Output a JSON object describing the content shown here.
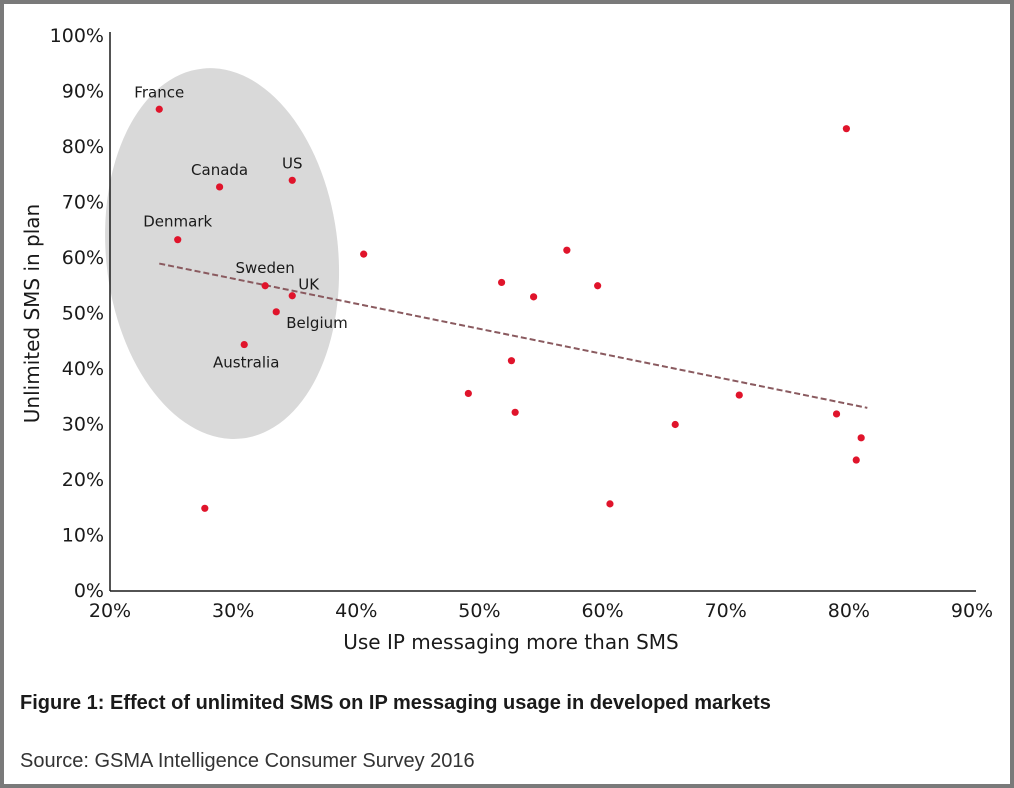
{
  "caption": "Figure 1: Effect of unlimited SMS on IP messaging usage in developed markets",
  "source": "Source: GSMA Intelligence Consumer Survey 2016",
  "colors": {
    "point": "#e0142b",
    "ellipse": "#d9d9d9",
    "trendline": "#8a5a5f",
    "axis": "#1a1a1a",
    "frame": "#7a7a7a"
  },
  "chart_data": {
    "type": "scatter",
    "title": "",
    "xlabel": "Use IP messaging more than SMS",
    "ylabel": "Unlimited SMS in plan",
    "xlim": [
      20,
      90
    ],
    "ylim": [
      0,
      100
    ],
    "x_ticks": [
      "20%",
      "30%",
      "40%",
      "50%",
      "60%",
      "70%",
      "80%",
      "90%"
    ],
    "y_ticks": [
      "0%",
      "10%",
      "20%",
      "30%",
      "40%",
      "50%",
      "60%",
      "70%",
      "80%",
      "90%",
      "100%"
    ],
    "grid": false,
    "legend": null,
    "highlight": {
      "shape": "ellipse",
      "covers": [
        "France",
        "Canada",
        "US",
        "Denmark",
        "Sweden",
        "UK",
        "Belgium",
        "Australia"
      ]
    },
    "trendline": {
      "style": "dashed",
      "x": [
        24,
        81.5
      ],
      "y": [
        59,
        33
      ]
    },
    "points": [
      {
        "label": "France",
        "x": 24.0,
        "y": 86.8
      },
      {
        "label": "Canada",
        "x": 28.9,
        "y": 72.8
      },
      {
        "label": "US",
        "x": 34.8,
        "y": 74.0
      },
      {
        "label": "Denmark",
        "x": 25.5,
        "y": 63.3
      },
      {
        "label": "Sweden",
        "x": 32.6,
        "y": 55.0
      },
      {
        "label": "UK",
        "x": 34.8,
        "y": 53.2
      },
      {
        "label": "Belgium",
        "x": 33.5,
        "y": 50.3
      },
      {
        "label": "Australia",
        "x": 30.9,
        "y": 44.4
      },
      {
        "label": "",
        "x": 27.7,
        "y": 14.9
      },
      {
        "label": "",
        "x": 40.6,
        "y": 60.7
      },
      {
        "label": "",
        "x": 49.1,
        "y": 35.6
      },
      {
        "label": "",
        "x": 51.8,
        "y": 55.6
      },
      {
        "label": "",
        "x": 52.6,
        "y": 41.5
      },
      {
        "label": "",
        "x": 52.9,
        "y": 32.2
      },
      {
        "label": "",
        "x": 54.4,
        "y": 53.0
      },
      {
        "label": "",
        "x": 57.1,
        "y": 61.4
      },
      {
        "label": "",
        "x": 59.6,
        "y": 55.0
      },
      {
        "label": "",
        "x": 60.6,
        "y": 15.7
      },
      {
        "label": "",
        "x": 65.9,
        "y": 30.0
      },
      {
        "label": "",
        "x": 71.1,
        "y": 35.3
      },
      {
        "label": "",
        "x": 79.0,
        "y": 31.9
      },
      {
        "label": "",
        "x": 79.8,
        "y": 83.3
      },
      {
        "label": "",
        "x": 80.6,
        "y": 23.6
      },
      {
        "label": "",
        "x": 81.0,
        "y": 27.6
      }
    ]
  }
}
